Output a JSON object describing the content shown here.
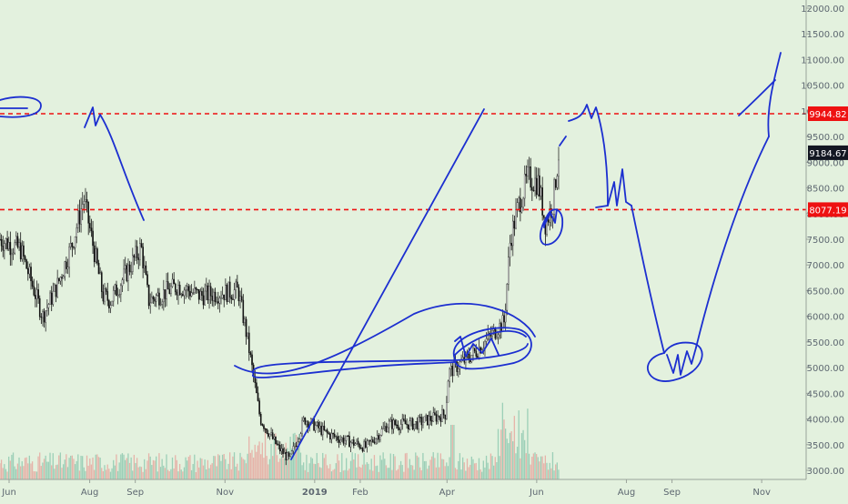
{
  "chart_data": {
    "type": "candlestick",
    "symbol": "BTC price (daily candles) with volume bars",
    "y_axis": {
      "position": "right",
      "ticks": [
        "12000.00",
        "11500.00",
        "11000.00",
        "10500.00",
        "10000.00",
        "9500.00",
        "9000.00",
        "8500.00",
        "8000.00",
        "7500.00",
        "7000.00",
        "6500.00",
        "6000.00",
        "5500.00",
        "5000.00",
        "4500.00",
        "4000.00",
        "3500.00",
        "3000.00"
      ],
      "range": [
        2900,
        12150
      ]
    },
    "x_axis": {
      "ticks": [
        "Jun",
        "Aug",
        "Sep",
        "Nov",
        "2019",
        "Feb",
        "Apr",
        "Jun",
        "Aug",
        "Sep",
        "Nov"
      ],
      "range": [
        "2018-06-01",
        "2019-11-30"
      ]
    },
    "price_lines": [
      {
        "value": 9944.82,
        "label": "9944.82",
        "color": "#ee1111",
        "style": "dashed"
      },
      {
        "value": 8077.19,
        "label": "8077.19",
        "color": "#ee1111",
        "style": "dashed"
      }
    ],
    "last_price": {
      "value": 9184.67,
      "label": "9184.67",
      "color": "#131722"
    },
    "series_close_keypoints": [
      {
        "date": "2018-06-01",
        "close": 7500
      },
      {
        "date": "2018-06-15",
        "close": 7300
      },
      {
        "date": "2018-06-30",
        "close": 6000
      },
      {
        "date": "2018-07-10",
        "close": 6600
      },
      {
        "date": "2018-07-20",
        "close": 7400
      },
      {
        "date": "2018-07-28",
        "close": 8300
      },
      {
        "date": "2018-08-10",
        "close": 6400
      },
      {
        "date": "2018-08-15",
        "close": 6300
      },
      {
        "date": "2018-09-05",
        "close": 7350
      },
      {
        "date": "2018-09-10",
        "close": 6300
      },
      {
        "date": "2018-09-30",
        "close": 6600
      },
      {
        "date": "2018-10-15",
        "close": 6400
      },
      {
        "date": "2018-11-10",
        "close": 6500
      },
      {
        "date": "2018-11-16",
        "close": 5600
      },
      {
        "date": "2018-11-25",
        "close": 4000
      },
      {
        "date": "2018-12-07",
        "close": 3450
      },
      {
        "date": "2018-12-15",
        "close": 3200
      },
      {
        "date": "2018-12-25",
        "close": 4000
      },
      {
        "date": "2019-01-10",
        "close": 3700
      },
      {
        "date": "2019-02-05",
        "close": 3450
      },
      {
        "date": "2019-02-20",
        "close": 3900
      },
      {
        "date": "2019-03-10",
        "close": 3900
      },
      {
        "date": "2019-03-31",
        "close": 4100
      },
      {
        "date": "2019-04-02",
        "close": 4900
      },
      {
        "date": "2019-04-20",
        "close": 5300
      },
      {
        "date": "2019-05-10",
        "close": 5900
      },
      {
        "date": "2019-05-14",
        "close": 7500
      },
      {
        "date": "2019-05-20",
        "close": 8200
      },
      {
        "date": "2019-05-26",
        "close": 8700
      },
      {
        "date": "2019-06-02",
        "close": 8600
      },
      {
        "date": "2019-06-07",
        "close": 7800
      },
      {
        "date": "2019-06-12",
        "close": 8200
      },
      {
        "date": "2019-06-16",
        "close": 9184.67
      }
    ],
    "annotations": "hand-drawn blue projection lines, circles and arrows",
    "grid": false,
    "legend": "none"
  }
}
